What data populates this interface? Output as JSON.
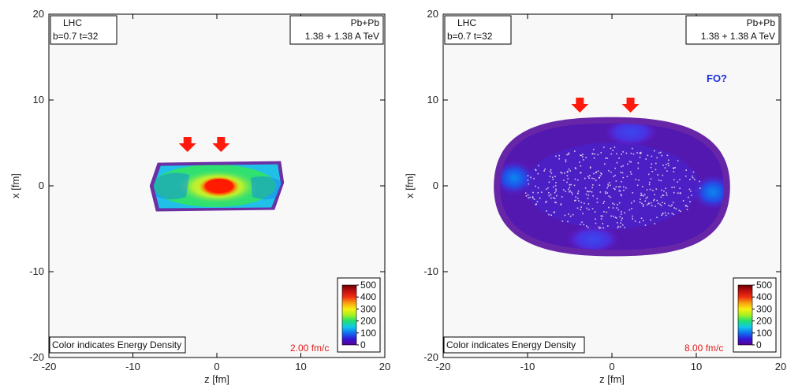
{
  "colors": {
    "page_bg": "#ffffff",
    "plot_bg": "#f8f8f8",
    "axis": "#000000",
    "arrow": "#ff1a0d",
    "time_label": "#e21b1b",
    "fo_label": "#1a2ee0",
    "colormap": [
      "#5b0090",
      "#3018d8",
      "#1070f0",
      "#10c8e8",
      "#20e070",
      "#a8f020",
      "#f8f010",
      "#f8a010",
      "#f03010",
      "#c01010",
      "#6a0000"
    ]
  },
  "chart_data": [
    {
      "type": "heatmap",
      "xlabel": "z  [fm]",
      "ylabel": "x [fm]",
      "xlim": [
        -20,
        20
      ],
      "ylim": [
        -20,
        20
      ],
      "x_ticks": [
        -20,
        -10,
        0,
        10,
        20
      ],
      "y_ticks": [
        -20,
        -10,
        0,
        10,
        20
      ],
      "x_tick_labels": [
        "-20",
        "-10",
        "0",
        "10",
        "20"
      ],
      "y_tick_labels": [
        "-20",
        "-10",
        "0",
        "10",
        "20"
      ],
      "info_left": [
        "LHC",
        "b=0.7  t=32"
      ],
      "info_right": [
        "Pb+Pb",
        "1.38 + 1.38 A TeV"
      ],
      "footnote": "Color indicates Energy Density",
      "time_label": "2.00 fm/c",
      "colorbar": {
        "ticks": [
          500,
          400,
          300,
          200,
          100,
          0
        ],
        "labels": [
          "500",
          "400",
          "300",
          "200",
          "100",
          "0"
        ]
      },
      "arrow_z": [
        -3.5,
        0.5
      ],
      "region": {
        "z_range": [
          -8,
          8
        ],
        "x_range": [
          -2.8,
          2.7
        ]
      },
      "density_blobs": [
        {
          "z": 0.3,
          "x": 0.0,
          "rz": 2.3,
          "rx": 1.1,
          "value": 480
        },
        {
          "z": -0.2,
          "x": 0.0,
          "rz": 5.8,
          "rx": 2.0,
          "value": 260
        },
        {
          "z": 0.0,
          "x": 0.0,
          "rz": 7.5,
          "rx": 2.6,
          "value": 120
        }
      ]
    },
    {
      "type": "heatmap",
      "xlabel": "z  [fm]",
      "ylabel": "x [fm]",
      "xlim": [
        -20,
        20
      ],
      "ylim": [
        -20,
        20
      ],
      "x_ticks": [
        -20,
        -10,
        0,
        10,
        20
      ],
      "y_ticks": [
        -20,
        -10,
        0,
        10,
        20
      ],
      "x_tick_labels": [
        "-20",
        "-10",
        "0",
        "10",
        "20"
      ],
      "y_tick_labels": [
        "-20",
        "-10",
        "0",
        "10",
        "20"
      ],
      "info_left": [
        "LHC",
        "b=0.7  t=32"
      ],
      "info_right": [
        "Pb+Pb",
        "1.38 + 1.38 A TeV"
      ],
      "annotation": "FO?",
      "footnote": "Color indicates Energy Density",
      "time_label": "8.00 fm/c",
      "colorbar": {
        "ticks": [
          500,
          400,
          300,
          200,
          100,
          0
        ],
        "labels": [
          "500",
          "400",
          "300",
          "200",
          "100",
          "0"
        ]
      },
      "arrow_z": [
        -3.8,
        2.2
      ],
      "region": {
        "z_range": [
          -14,
          14
        ],
        "x_range": [
          -8.2,
          8.0
        ]
      },
      "density_blobs": [
        {
          "z": -12.0,
          "x": 1.0,
          "rz": 1.8,
          "rx": 1.5,
          "value": 90
        },
        {
          "z": 12.5,
          "x": -0.5,
          "rz": 1.8,
          "rx": 1.5,
          "value": 90
        },
        {
          "z": 2.0,
          "x": 6.5,
          "rz": 3.0,
          "rx": 1.5,
          "value": 60
        },
        {
          "z": -2.5,
          "x": -6.5,
          "rz": 3.0,
          "rx": 1.5,
          "value": 60
        }
      ]
    }
  ]
}
